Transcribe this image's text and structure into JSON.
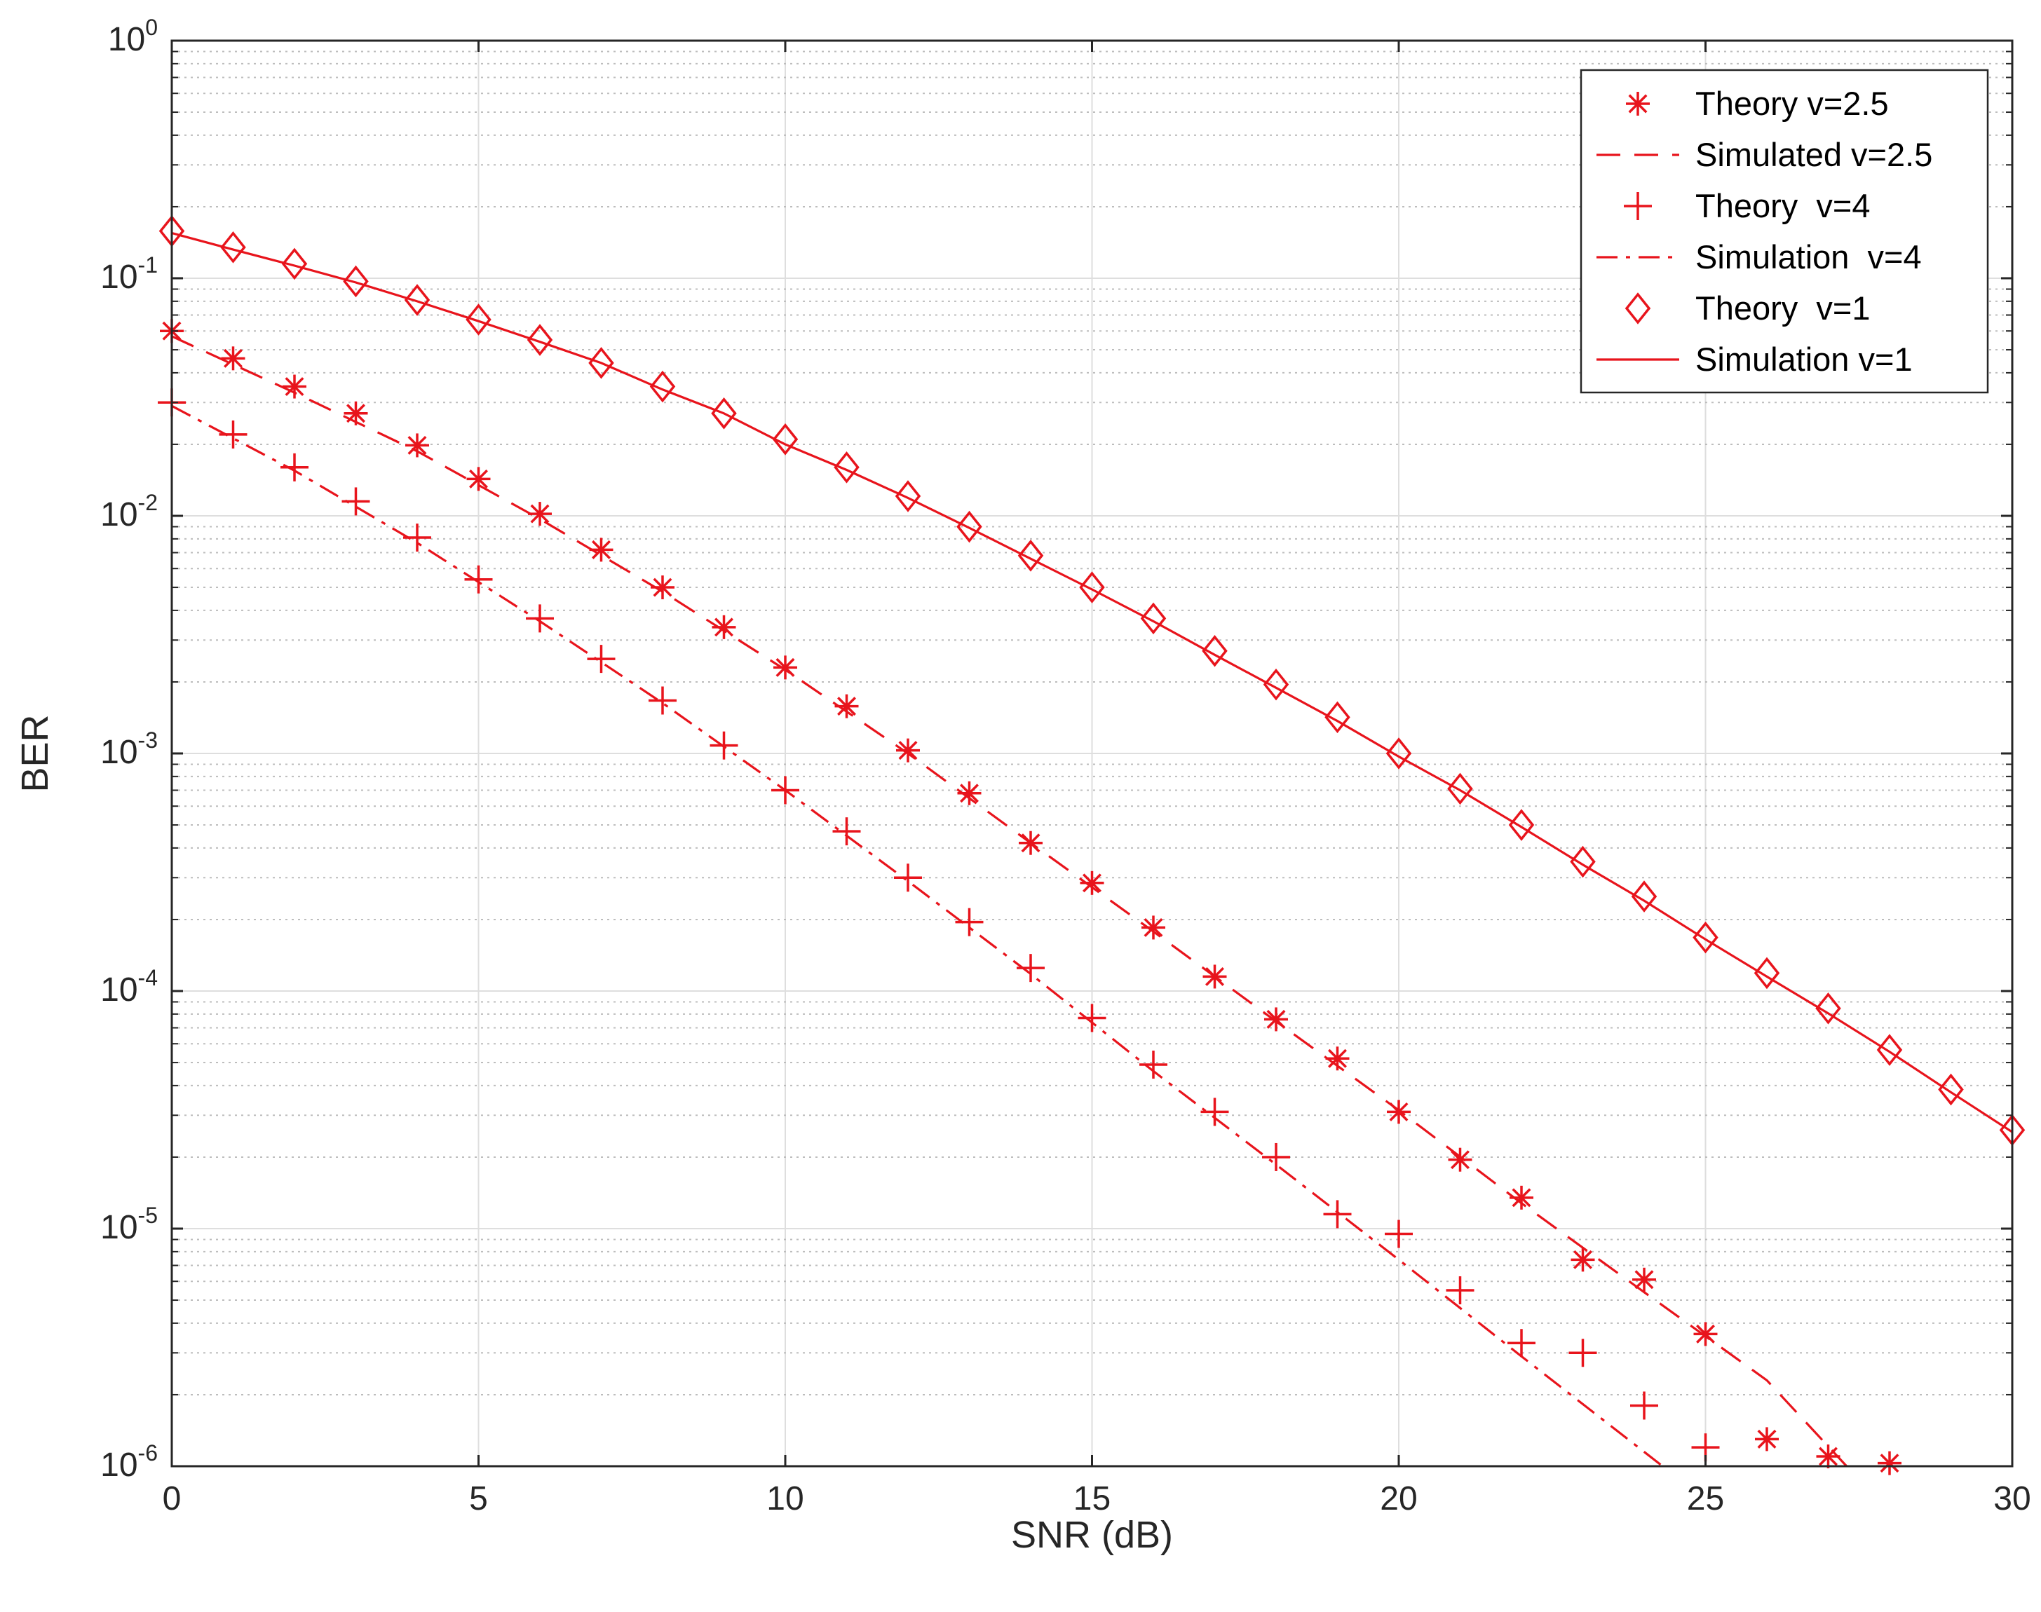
{
  "chart_data": {
    "type": "line",
    "title": "",
    "xlabel": "SNR (dB)",
    "ylabel": "BER",
    "xlim": [
      0,
      30
    ],
    "ylim": [
      1e-06,
      1
    ],
    "yscale": "log",
    "grid": true,
    "minor_grid": true,
    "legend_position": "top-right",
    "color": "#e8141c",
    "x_ticks": [
      "0",
      "5",
      "10",
      "15",
      "20",
      "25",
      "30"
    ],
    "y_ticks": [
      {
        "base": "10",
        "exp": "0"
      },
      {
        "base": "10",
        "exp": "-1"
      },
      {
        "base": "10",
        "exp": "-2"
      },
      {
        "base": "10",
        "exp": "-3"
      },
      {
        "base": "10",
        "exp": "-4"
      },
      {
        "base": "10",
        "exp": "-5"
      },
      {
        "base": "10",
        "exp": "-6"
      }
    ],
    "series": [
      {
        "name": "Theory v=2.5",
        "style": "markers",
        "marker": "asterisk",
        "x": [
          0,
          1,
          2,
          3,
          4,
          5,
          6,
          7,
          8,
          9,
          10,
          11,
          12,
          13,
          14,
          15,
          16,
          17,
          18,
          19,
          20,
          21,
          22,
          23,
          24,
          25,
          26,
          27,
          28
        ],
        "y": [
          0.06,
          0.046,
          0.035,
          0.027,
          0.0198,
          0.0143,
          0.0102,
          0.0072,
          0.005,
          0.0034,
          0.0023,
          0.00158,
          0.00103,
          0.00068,
          0.00042,
          0.000285,
          0.000185,
          0.000115,
          7.6e-05,
          5.2e-05,
          3.1e-05,
          1.95e-05,
          1.35e-05,
          7.4e-06,
          6.1e-06,
          3.6e-06,
          1.3e-06,
          1.1e-06,
          1.03e-06
        ]
      },
      {
        "name": "Simulated v=2.5",
        "style": "dashed",
        "x": [
          0,
          2,
          4,
          6,
          8,
          10,
          12,
          14,
          16,
          18,
          20,
          22,
          24,
          26,
          27.3
        ],
        "y": [
          0.057,
          0.033,
          0.0187,
          0.0097,
          0.0048,
          0.00225,
          0.001,
          0.00042,
          0.000178,
          7.45e-05,
          3.15e-05,
          1.28e-05,
          5.4e-06,
          2.3e-06,
          1e-06
        ]
      },
      {
        "name": "Theory  v=4",
        "style": "markers",
        "marker": "plus",
        "x": [
          0,
          1,
          2,
          3,
          4,
          5,
          6,
          7,
          8,
          9,
          10,
          11,
          12,
          13,
          14,
          15,
          16,
          17,
          18,
          19,
          20,
          21,
          22,
          23,
          24,
          25
        ],
        "y": [
          0.03,
          0.022,
          0.016,
          0.0115,
          0.0081,
          0.0054,
          0.0037,
          0.0025,
          0.00167,
          0.00108,
          0.0007,
          0.00047,
          0.0003,
          0.000195,
          0.000125,
          7.7e-05,
          4.9e-05,
          3.1e-05,
          2e-05,
          1.15e-05,
          9.5e-06,
          5.5e-06,
          3.3e-06,
          3e-06,
          1.8e-06,
          1.2e-06
        ]
      },
      {
        "name": "Simulation  v=4",
        "style": "dashdot",
        "x": [
          0,
          2,
          4,
          6,
          8,
          10,
          12,
          14,
          16,
          18,
          20,
          22,
          24.3
        ],
        "y": [
          0.029,
          0.0155,
          0.0077,
          0.0036,
          0.00163,
          0.0007,
          0.00029,
          0.000118,
          4.6e-05,
          1.86e-05,
          7.4e-06,
          2.9e-06,
          1e-06
        ]
      },
      {
        "name": "Theory  v=1",
        "style": "markers",
        "marker": "diamond",
        "x": [
          0,
          1,
          2,
          3,
          4,
          5,
          6,
          7,
          8,
          9,
          10,
          11,
          12,
          13,
          14,
          15,
          16,
          17,
          18,
          19,
          20,
          21,
          22,
          23,
          24,
          25,
          26,
          27,
          28,
          29,
          30
        ],
        "y": [
          0.158,
          0.135,
          0.115,
          0.097,
          0.081,
          0.067,
          0.055,
          0.044,
          0.035,
          0.027,
          0.021,
          0.016,
          0.0121,
          0.009,
          0.0068,
          0.005,
          0.0037,
          0.0027,
          0.00195,
          0.00142,
          0.001,
          0.00071,
          0.0005,
          0.00035,
          0.00025,
          0.000168,
          0.000119,
          8.45e-05,
          5.65e-05,
          3.85e-05,
          2.6e-05
        ]
      },
      {
        "name": "Simulation v=1",
        "style": "solid",
        "x": [
          0,
          1,
          2,
          3,
          4,
          5,
          6,
          7,
          8,
          9,
          10,
          11,
          12,
          13,
          14,
          15,
          16,
          17,
          18,
          19,
          20,
          21,
          22,
          23,
          24,
          25,
          26,
          27,
          28,
          29,
          30
        ],
        "y": [
          0.155,
          0.132,
          0.113,
          0.096,
          0.08,
          0.066,
          0.054,
          0.044,
          0.034,
          0.027,
          0.02,
          0.0156,
          0.0119,
          0.0089,
          0.0066,
          0.0049,
          0.0036,
          0.0026,
          0.00189,
          0.00137,
          0.00097,
          0.0007,
          0.00049,
          0.00034,
          0.00024,
          0.000165,
          0.000115,
          8.05e-05,
          5.55e-05,
          3.75e-05,
          2.55e-05
        ]
      }
    ]
  }
}
